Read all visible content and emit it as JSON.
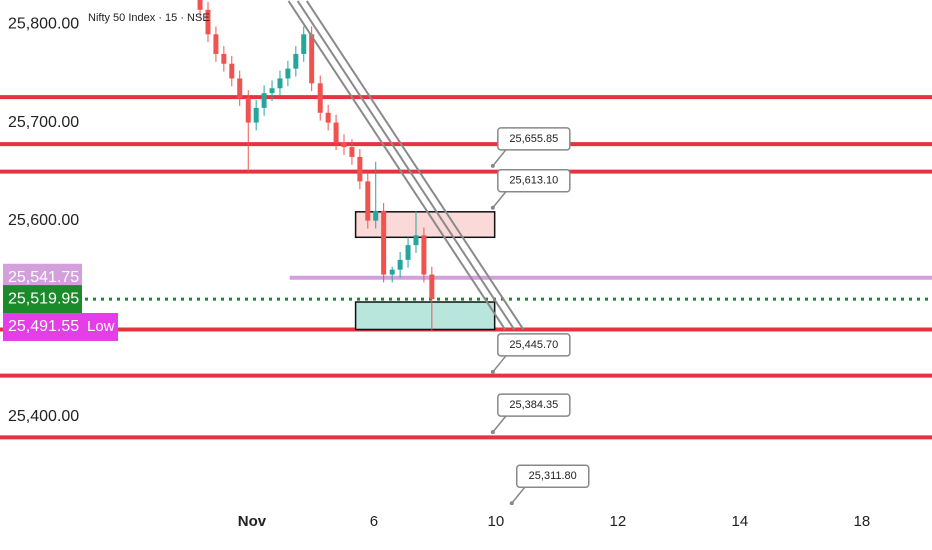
{
  "chart_data": {
    "type": "candlestick",
    "title": "Nifty 50 Index · 15 · NSE",
    "x": [
      -0.85,
      -0.72,
      -0.59,
      -0.46,
      -0.33,
      -0.2,
      -0.06,
      0.07,
      0.2,
      0.33,
      0.46,
      0.59,
      0.72,
      0.85,
      0.98,
      1.12,
      1.25,
      1.38,
      1.51,
      1.64,
      1.77,
      1.9,
      2.03,
      2.16,
      2.3,
      2.43,
      2.56,
      2.69,
      2.82,
      2.95
    ],
    "open": [
      25825,
      25815,
      25790,
      25770,
      25760,
      25745,
      25725,
      25700,
      25715,
      25730,
      25735,
      25745,
      25755,
      25770,
      25790,
      25740,
      25710,
      25700,
      25680,
      25675,
      25665,
      25640,
      25600,
      25610,
      25545,
      25550,
      25560,
      25575,
      25585,
      25545
    ],
    "high": [
      25833,
      25823,
      25798,
      25778,
      25768,
      25753,
      25733,
      25723,
      25738,
      25743,
      25753,
      25763,
      25778,
      25798,
      25798,
      25748,
      25718,
      25708,
      25688,
      25683,
      25673,
      25648,
      25660,
      25618,
      25553,
      25568,
      25583,
      25610,
      25593,
      25553
    ],
    "low": [
      25807,
      25782,
      25762,
      25752,
      25737,
      25717,
      25650,
      25692,
      25707,
      25722,
      25727,
      25737,
      25747,
      25762,
      25732,
      25702,
      25692,
      25672,
      25667,
      25657,
      25632,
      25592,
      25592,
      25537,
      25537,
      25542,
      25552,
      25567,
      25537,
      25488
    ],
    "close": [
      25815,
      25790,
      25770,
      25760,
      25745,
      25725,
      25700,
      25715,
      25730,
      25735,
      25745,
      25755,
      25770,
      25790,
      25740,
      25710,
      25700,
      25680,
      25675,
      25665,
      25640,
      25600,
      25610,
      25545,
      25550,
      25560,
      25575,
      25585,
      25545,
      25520
    ],
    "up_color": "#26a69a",
    "down_color": "#ef5350",
    "xlim": [
      -4.13,
      11.15
    ],
    "ylim": [
      25310,
      25825
    ],
    "xticks": [
      {
        "value": 0,
        "label": "Nov"
      },
      {
        "value": 2,
        "label": "6"
      },
      {
        "value": 4,
        "label": "10"
      },
      {
        "value": 6,
        "label": "12"
      },
      {
        "value": 8,
        "label": "14"
      },
      {
        "value": 10,
        "label": "18"
      }
    ],
    "yticks": [
      {
        "value": 25800,
        "label": "25,800.00"
      },
      {
        "value": 25700,
        "label": "25,700.00"
      },
      {
        "value": 25600,
        "label": "25,600.00"
      },
      {
        "value": 25400,
        "label": "25,400.00"
      }
    ],
    "levels": {
      "values": [
        25726,
        25678,
        25650,
        25489,
        25442,
        25379
      ],
      "color": "#e53340"
    },
    "zones": [
      {
        "top": 25609,
        "bottom": 25583,
        "x0": 1.7,
        "x1": 3.98,
        "color": "#fbd9d9"
      },
      {
        "top": 25517,
        "bottom": 25489,
        "x0": 1.7,
        "x1": 3.98,
        "color": "#b9e6dc"
      }
    ],
    "trendlines": [
      {
        "x0": 0.6,
        "y0": 25824,
        "x1": 4.15,
        "y1": 25489
      },
      {
        "x0": 0.75,
        "y0": 25824,
        "x1": 4.3,
        "y1": 25489
      },
      {
        "x0": 0.9,
        "y0": 25824,
        "x1": 4.45,
        "y1": 25489
      }
    ],
    "price_tags": [
      {
        "value": 25541.75,
        "label": "25,541.75",
        "color": "#d3a0dc",
        "line_x0": 0.62
      },
      {
        "value": 25519.95,
        "label": "25,519.95",
        "color": "#1b8a2a"
      },
      {
        "value": 25491.55,
        "label": "25,491.55",
        "color": "#e53ee8",
        "note": "Low"
      }
    ],
    "callouts": [
      {
        "value": 25655.85,
        "label": "25,655.85",
        "x": 3.95
      },
      {
        "value": 25613.1,
        "label": "25,613.10",
        "x": 3.95
      },
      {
        "value": 25445.7,
        "label": "25,445.70",
        "x": 3.95
      },
      {
        "value": 25384.35,
        "label": "25,384.35",
        "x": 3.95
      },
      {
        "value": 25311.8,
        "label": "25,311.80",
        "x": 4.26
      }
    ]
  }
}
